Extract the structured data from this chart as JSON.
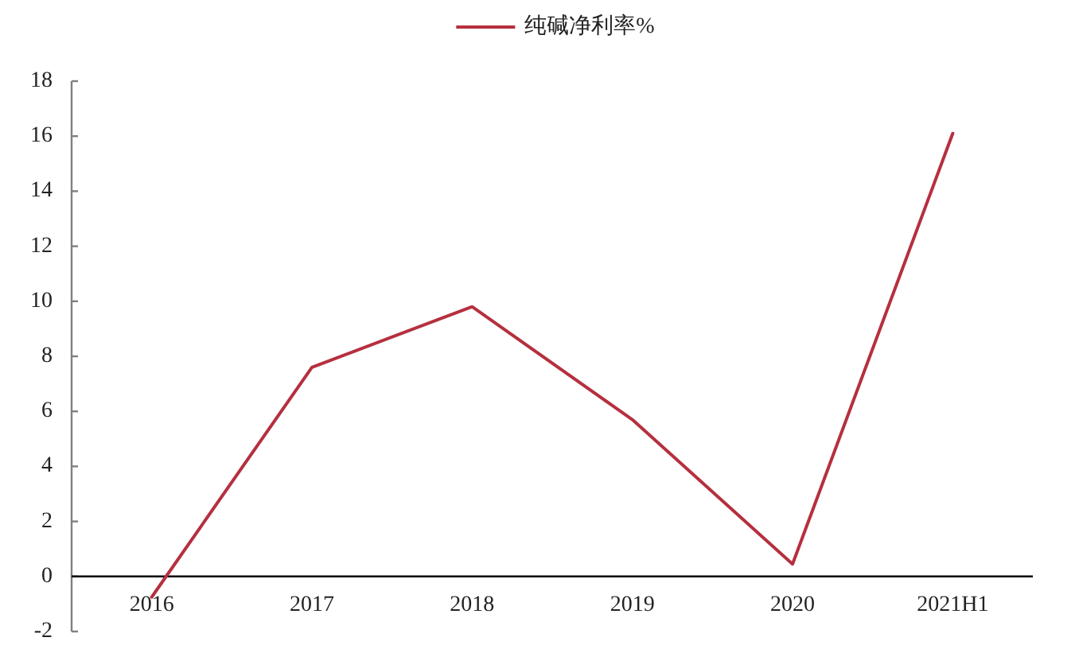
{
  "chart_data": {
    "type": "line",
    "categories": [
      "2016",
      "2017",
      "2018",
      "2019",
      "2020",
      "2021H1"
    ],
    "series": [
      {
        "name": "纯碱净利率%",
        "color": "#b5303f",
        "values": [
          -0.75,
          7.6,
          9.8,
          5.7,
          0.45,
          16.1
        ]
      }
    ],
    "ylim": [
      -2,
      18
    ],
    "yticks": [
      -2,
      0,
      2,
      4,
      6,
      8,
      10,
      12,
      14,
      16,
      18
    ],
    "legend": "top",
    "line_style": "solid"
  }
}
